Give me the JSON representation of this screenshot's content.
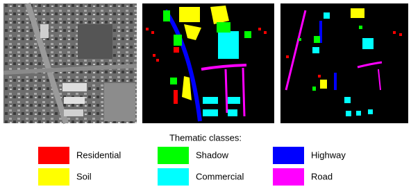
{
  "legend": {
    "title": "Thematic classes:",
    "items": [
      {
        "name": "Residential",
        "color": "#ff0000"
      },
      {
        "name": "Shadow",
        "color": "#00ff00"
      },
      {
        "name": "Highway",
        "color": "#0000ff"
      },
      {
        "name": "Soil",
        "color": "#ffff00"
      },
      {
        "name": "Commercial",
        "color": "#00ffff"
      },
      {
        "name": "Road",
        "color": "#ff00ff"
      }
    ]
  }
}
